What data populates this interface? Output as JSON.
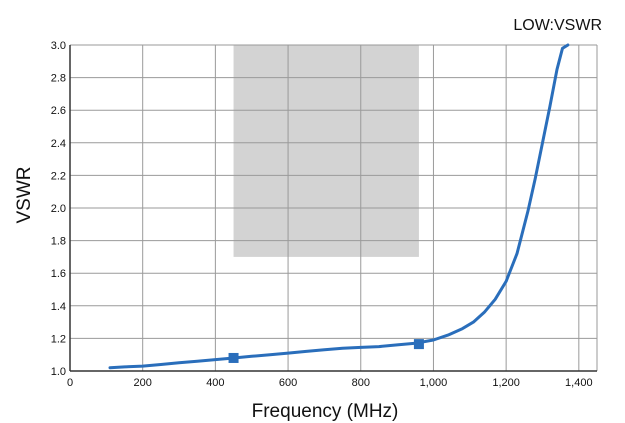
{
  "chart_data": {
    "type": "line",
    "title": "LOW:VSWR",
    "xlabel": "Frequency (MHz)",
    "ylabel": "VSWR",
    "xlim": [
      0,
      1450
    ],
    "ylim": [
      1.0,
      3.0
    ],
    "x_ticks": [
      0,
      200,
      400,
      600,
      800,
      1000,
      1200,
      1400
    ],
    "x_tick_labels": [
      "0",
      "200",
      "400",
      "600",
      "800",
      "1,000",
      "1,200",
      "1,400"
    ],
    "y_ticks": [
      1.0,
      1.2,
      1.4,
      1.6,
      1.8,
      2.0,
      2.2,
      2.4,
      2.6,
      2.8,
      3.0
    ],
    "y_tick_labels": [
      "1.0",
      "1.2",
      "1.4",
      "1.6",
      "1.8",
      "2.0",
      "2.2",
      "2.4",
      "2.6",
      "2.8",
      "3.0"
    ],
    "grid": true,
    "legend": "none",
    "line_color": "#2a6ebb",
    "marker_color": "#2a6ebb",
    "grid_color": "#9a9a9a",
    "shade_color": "#d3d3d3",
    "shaded_region": {
      "x": [
        450,
        960
      ],
      "y": [
        1.7,
        3.0
      ]
    },
    "series": [
      {
        "x": [
          110,
          150,
          200,
          250,
          300,
          350,
          400,
          450,
          500,
          550,
          600,
          650,
          700,
          750,
          800,
          850,
          900,
          950,
          1000,
          1040,
          1080,
          1110,
          1140,
          1170,
          1200,
          1230,
          1260,
          1280,
          1300,
          1320,
          1340,
          1355,
          1370
        ],
        "y": [
          1.02,
          1.025,
          1.03,
          1.04,
          1.05,
          1.06,
          1.07,
          1.08,
          1.09,
          1.1,
          1.11,
          1.12,
          1.13,
          1.14,
          1.145,
          1.15,
          1.16,
          1.17,
          1.19,
          1.22,
          1.26,
          1.3,
          1.36,
          1.44,
          1.55,
          1.72,
          1.98,
          2.18,
          2.4,
          2.62,
          2.85,
          2.98,
          3.0
        ]
      }
    ],
    "markers": [
      {
        "x": 450,
        "y": 1.08
      },
      {
        "x": 960,
        "y": 1.165
      }
    ]
  }
}
